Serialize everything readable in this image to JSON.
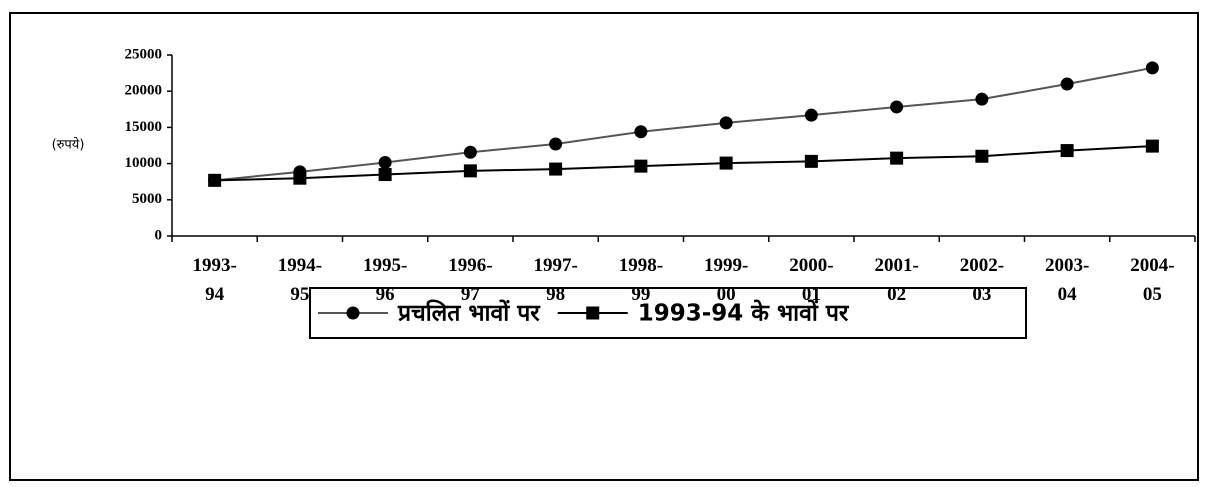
{
  "chart_data": {
    "type": "line",
    "y_label": "(रुपये)",
    "categories": [
      "1993-94",
      "1994-95",
      "1995-96",
      "1996-97",
      "1997-98",
      "1998-99",
      "1999-00",
      "2000-01",
      "2001-02",
      "2002-03",
      "2003-04",
      "2004-05"
    ],
    "series": [
      {
        "name": "प्रचलित भावों पर",
        "color": "#000000",
        "line_color": "#555555",
        "marker": "circle",
        "values": [
          7690,
          8857,
          10149,
          11564,
          12707,
          14396,
          15625,
          16688,
          17823,
          18899,
          20989,
          23222
        ]
      },
      {
        "name": "1993-94  के भावों पर",
        "color": "#000000",
        "line_color": "#000000",
        "marker": "square",
        "values": [
          7690,
          7983,
          8489,
          8998,
          9244,
          9650,
          10071,
          10308,
          10754,
          11013,
          11799,
          12416
        ]
      }
    ],
    "ylim": [
      0,
      25000
    ],
    "yticks": [
      0,
      5000,
      10000,
      15000,
      20000,
      25000
    ],
    "grid": false,
    "legend": "bottom"
  }
}
